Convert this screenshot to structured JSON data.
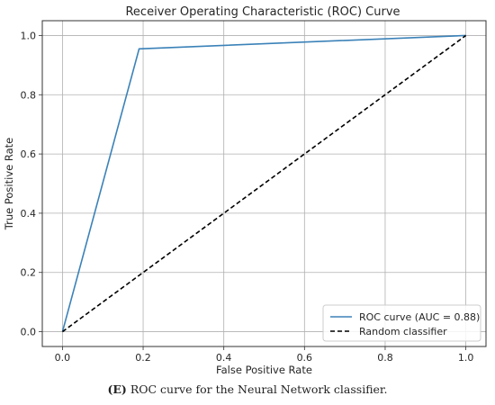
{
  "chart_data": {
    "type": "line",
    "title": "Receiver Operating Characteristic (ROC) Curve",
    "xlabel": "False Positive Rate",
    "ylabel": "True Positive Rate",
    "xlim": [
      -0.05,
      1.05
    ],
    "ylim": [
      -0.05,
      1.05
    ],
    "xticks": [
      0.0,
      0.2,
      0.4,
      0.6,
      0.8,
      1.0
    ],
    "yticks": [
      0.0,
      0.2,
      0.4,
      0.6,
      0.8,
      1.0
    ],
    "xtick_labels": [
      "0.0",
      "0.2",
      "0.4",
      "0.6",
      "0.8",
      "1.0"
    ],
    "ytick_labels": [
      "0.0",
      "0.2",
      "0.4",
      "0.6",
      "0.8",
      "1.0"
    ],
    "grid": true,
    "legend_position": "bottom-right",
    "series": [
      {
        "name": "ROC curve (AUC = 0.88)",
        "style": "solid",
        "color": "#3b82b8",
        "x": [
          0.0,
          0.19,
          1.0
        ],
        "y": [
          0.0,
          0.955,
          1.0
        ]
      },
      {
        "name": "Random classifier",
        "style": "dashed",
        "color": "#000000",
        "x": [
          0.0,
          1.0
        ],
        "y": [
          0.0,
          1.0
        ]
      }
    ]
  },
  "caption": {
    "label": "(E)",
    "text": " ROC curve for the Neural Network classifier."
  }
}
